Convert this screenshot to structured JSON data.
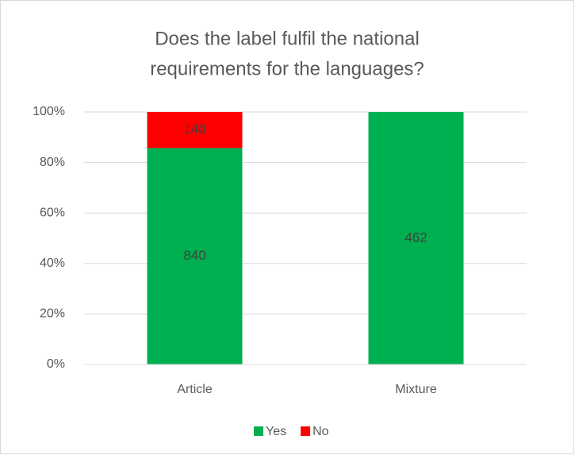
{
  "chart_data": {
    "type": "bar",
    "stacking": "percent",
    "title_lines": [
      "Does the label fulfil the national",
      "requirements for the languages?"
    ],
    "categories": [
      "Article",
      "Mixture"
    ],
    "series": [
      {
        "name": "Yes",
        "color": "#00b050",
        "values": [
          840,
          462
        ]
      },
      {
        "name": "No",
        "color": "#ff0000",
        "values": [
          140,
          0
        ]
      }
    ],
    "ylim": [
      0,
      100
    ],
    "yticks": [
      {
        "value": 0,
        "label": "0%"
      },
      {
        "value": 20,
        "label": "20%"
      },
      {
        "value": 40,
        "label": "40%"
      },
      {
        "value": 60,
        "label": "60%"
      },
      {
        "value": 80,
        "label": "80%"
      },
      {
        "value": 100,
        "label": "100%"
      }
    ],
    "grid": true,
    "legend": "bottom"
  }
}
